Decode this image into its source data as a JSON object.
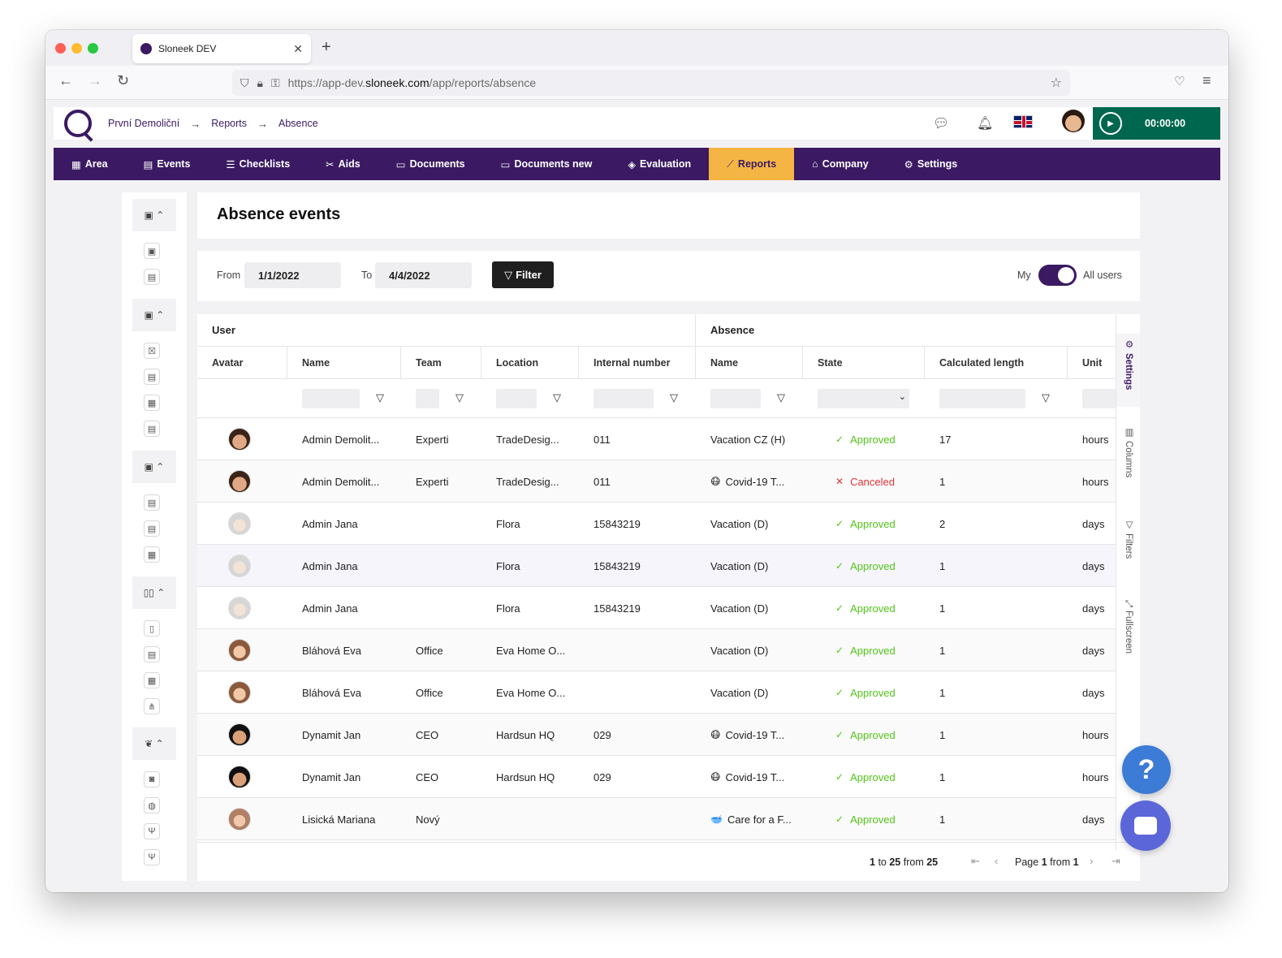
{
  "browser": {
    "tab_title": "Sloneek DEV",
    "url_prefix": "https://app-dev.",
    "url_host": "sloneek.com",
    "url_path": "/app/reports/absence"
  },
  "header": {
    "breadcrumbs": [
      "První Demoliční",
      "Reports",
      "Absence"
    ],
    "crumb_separator": "→",
    "timer": "00:00:00"
  },
  "nav": {
    "items": [
      {
        "label": "Area",
        "icon": "grid-icon",
        "glyph": "▦"
      },
      {
        "label": "Events",
        "icon": "calendar-icon",
        "glyph": "▤"
      },
      {
        "label": "Checklists",
        "icon": "checklist-icon",
        "glyph": "☰"
      },
      {
        "label": "Aids",
        "icon": "tools-icon",
        "glyph": "✂"
      },
      {
        "label": "Documents",
        "icon": "folder-icon",
        "glyph": "▭"
      },
      {
        "label": "Documents new",
        "icon": "folder-icon",
        "glyph": "▭"
      },
      {
        "label": "Evaluation",
        "icon": "puzzle-icon",
        "glyph": "◈"
      },
      {
        "label": "Reports",
        "icon": "chart-icon",
        "glyph": "⟋"
      },
      {
        "label": "Company",
        "icon": "building-icon",
        "glyph": "⌂"
      },
      {
        "label": "Settings",
        "icon": "gear-icon",
        "glyph": "⚙"
      }
    ],
    "active": "Reports",
    "active_color": "#f5b544",
    "brand_color": "#3b1a63"
  },
  "page": {
    "title": "Absence events"
  },
  "filters": {
    "from_label": "From",
    "from_value": "1/1/2022",
    "to_label": "To",
    "to_value": "4/4/2022",
    "filter_button": "Filter",
    "toggle_left": "My",
    "toggle_right": "All users",
    "toggle_state": "All users"
  },
  "table": {
    "groups": [
      "User",
      "Absence"
    ],
    "columns": [
      "Avatar",
      "Name",
      "Team",
      "Location",
      "Internal number",
      "Name",
      "State",
      "Calculated length",
      "Unit"
    ],
    "rows": [
      {
        "avatar": "man",
        "name": "Admin Demolit...",
        "team": "Experti",
        "location": "TradeDesig...",
        "internal": "011",
        "absence": "Vacation CZ (H)",
        "emoji": "",
        "state": "Approved",
        "length": "17",
        "unit": "hours"
      },
      {
        "avatar": "man",
        "name": "Admin Demolit...",
        "team": "Experti",
        "location": "TradeDesig...",
        "internal": "011",
        "absence": "Covid-19 T...",
        "emoji": "😷",
        "state": "Canceled",
        "length": "1",
        "unit": "hours"
      },
      {
        "avatar": "gray",
        "name": "Admin Jana",
        "team": "",
        "location": "Flora",
        "internal": "15843219",
        "absence": "Vacation (D)",
        "emoji": "",
        "state": "Approved",
        "length": "2",
        "unit": "days"
      },
      {
        "avatar": "gray",
        "name": "Admin Jana",
        "team": "",
        "location": "Flora",
        "internal": "15843219",
        "absence": "Vacation (D)",
        "emoji": "",
        "state": "Approved",
        "length": "1",
        "unit": "days"
      },
      {
        "avatar": "gray",
        "name": "Admin Jana",
        "team": "",
        "location": "Flora",
        "internal": "15843219",
        "absence": "Vacation (D)",
        "emoji": "",
        "state": "Approved",
        "length": "1",
        "unit": "days"
      },
      {
        "avatar": "woman",
        "name": "Bláhová Eva",
        "team": "Office",
        "location": "Eva Home O...",
        "internal": "",
        "absence": "Vacation (D)",
        "emoji": "",
        "state": "Approved",
        "length": "1",
        "unit": "days"
      },
      {
        "avatar": "woman",
        "name": "Bláhová Eva",
        "team": "Office",
        "location": "Eva Home O...",
        "internal": "",
        "absence": "Vacation (D)",
        "emoji": "",
        "state": "Approved",
        "length": "1",
        "unit": "days"
      },
      {
        "avatar": "dark",
        "name": "Dynamit Jan",
        "team": "CEO",
        "location": "Hardsun HQ",
        "internal": "029",
        "absence": "Covid-19 T...",
        "emoji": "😷",
        "state": "Approved",
        "length": "1",
        "unit": "hours"
      },
      {
        "avatar": "dark",
        "name": "Dynamit Jan",
        "team": "CEO",
        "location": "Hardsun HQ",
        "internal": "029",
        "absence": "Covid-19 T...",
        "emoji": "😷",
        "state": "Approved",
        "length": "1",
        "unit": "hours"
      },
      {
        "avatar": "girl",
        "name": "Lisická Mariana",
        "team": "Nový",
        "location": "",
        "internal": "",
        "absence": "Care for a F...",
        "emoji": "🥣",
        "state": "Approved",
        "length": "1",
        "unit": "days"
      }
    ],
    "state_colors": {
      "Approved": "#52c41a",
      "Canceled": "#e0343a"
    }
  },
  "side_tabs": [
    {
      "label": "Settings",
      "icon": "gear-icon",
      "glyph": "⚙"
    },
    {
      "label": "Columns",
      "icon": "columns-icon",
      "glyph": "▥"
    },
    {
      "label": "Filters",
      "icon": "funnel-icon",
      "glyph": "▽"
    },
    {
      "label": "Fullscreen",
      "icon": "fullscreen-icon",
      "glyph": "⤢"
    }
  ],
  "pagination": {
    "range_start": "1",
    "to_word": "to",
    "range_end": "25",
    "from_word": "from",
    "total": "25",
    "page_word": "Page",
    "page_current": "1",
    "page_from_word": "from",
    "page_total": "1"
  },
  "widgets": {
    "help_label": "?"
  }
}
